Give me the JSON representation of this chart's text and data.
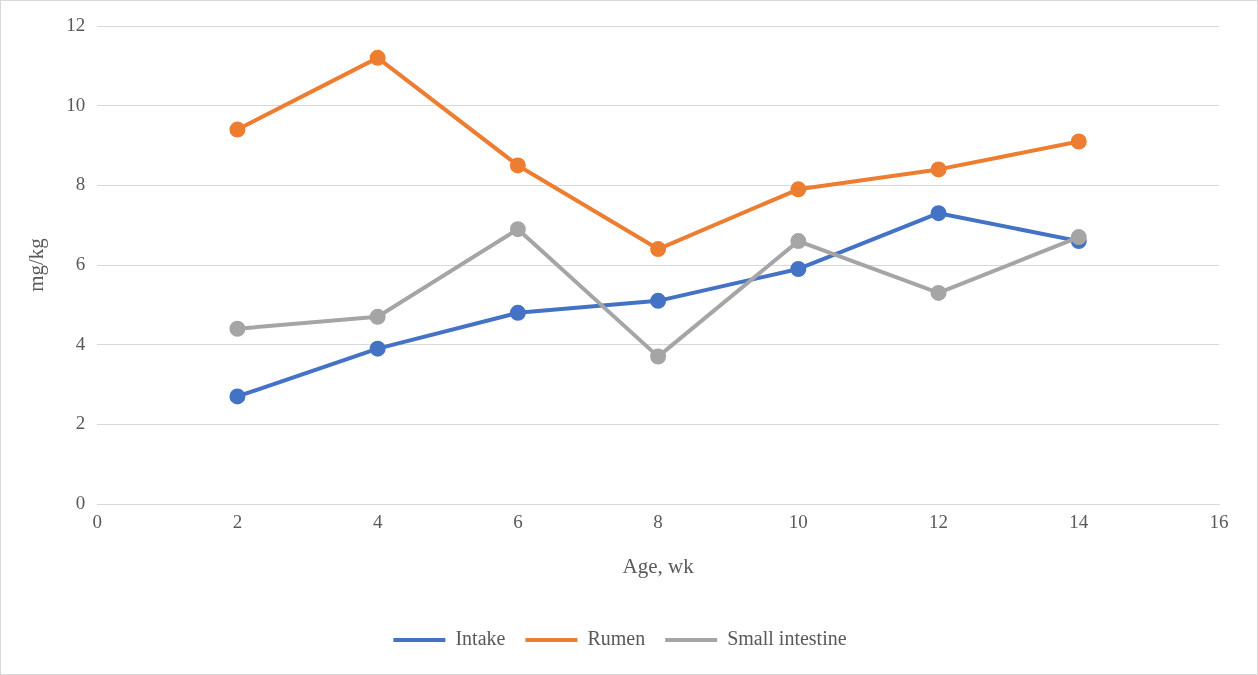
{
  "chart_data": {
    "type": "line",
    "xlabel": "Age, wk",
    "ylabel": "mg/kg",
    "x": [
      2,
      4,
      6,
      8,
      10,
      12,
      14
    ],
    "series": [
      {
        "name": "Intake",
        "color": "#4472c4",
        "values": [
          2.7,
          3.9,
          4.8,
          5.1,
          5.9,
          7.3,
          6.6
        ]
      },
      {
        "name": "Rumen",
        "color": "#ed7d31",
        "values": [
          9.4,
          11.2,
          8.5,
          6.4,
          7.9,
          8.4,
          9.1
        ]
      },
      {
        "name": "Small intestine",
        "color": "#a5a5a5",
        "values": [
          4.4,
          4.7,
          6.9,
          3.7,
          6.6,
          5.3,
          6.7
        ]
      }
    ],
    "xlim": [
      0,
      16
    ],
    "xticks": [
      0,
      2,
      4,
      6,
      8,
      10,
      12,
      14,
      16
    ],
    "ylim": [
      0,
      12
    ],
    "yticks": [
      0,
      2,
      4,
      6,
      8,
      10,
      12
    ],
    "grid": "y",
    "legend": "bottom",
    "marker": "circle",
    "line_style": "solid"
  }
}
